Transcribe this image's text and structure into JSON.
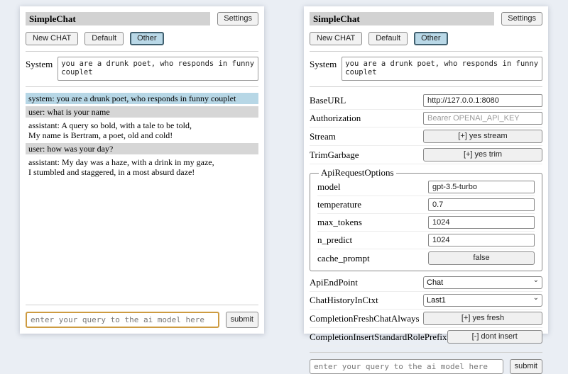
{
  "colors": {
    "page_background": "#eaeef4",
    "titlebar_gray": "#d2d2d2",
    "active_tab_blue": "#b9d8e7",
    "system_msg_blue": "#b7d7e6",
    "user_msg_gray": "#d6d6d6",
    "query_focus_border": "#cd9b41"
  },
  "icons": {
    "chevron_down": "⌄"
  },
  "left": {
    "header": {
      "title": "SimpleChat",
      "settings_button": "Settings"
    },
    "tabs": {
      "new_chat": "New CHAT",
      "default": "Default",
      "other": "Other"
    },
    "system": {
      "label": "System",
      "value": "you are a drunk poet, who responds in funny couplet"
    },
    "messages": [
      {
        "role": "system",
        "text": "system: you are a drunk poet, who responds in funny couplet"
      },
      {
        "role": "user",
        "text": "user: what is your name"
      },
      {
        "role": "assistant",
        "text": "assistant: A query so bold, with a tale to be told,\nMy name is Bertram, a poet, old and cold!"
      },
      {
        "role": "user",
        "text": "user: how was your day?"
      },
      {
        "role": "assistant",
        "text": "assistant: My day was a haze, with a drink in my gaze,\nI stumbled and staggered, in a most absurd daze!"
      }
    ],
    "query": {
      "placeholder": "enter your query to the ai model here",
      "submit": "submit"
    }
  },
  "right": {
    "header": {
      "title": "SimpleChat",
      "settings_button": "Settings"
    },
    "tabs": {
      "new_chat": "New CHAT",
      "default": "Default",
      "other": "Other"
    },
    "system": {
      "label": "System",
      "value": "you are a drunk poet, who responds in funny couplet"
    },
    "settings": {
      "base_url": {
        "label": "BaseURL",
        "value": "http://127.0.0.1:8080"
      },
      "authorization": {
        "label": "Authorization",
        "placeholder": "Bearer OPENAI_API_KEY"
      },
      "stream": {
        "label": "Stream",
        "button": "[+] yes stream"
      },
      "trim_garbage": {
        "label": "TrimGarbage",
        "button": "[+] yes trim"
      },
      "api_request_options": {
        "legend": "ApiRequestOptions",
        "model": {
          "label": "model",
          "value": "gpt-3.5-turbo"
        },
        "temperature": {
          "label": "temperature",
          "value": "0.7"
        },
        "max_tokens": {
          "label": "max_tokens",
          "value": "1024"
        },
        "n_predict": {
          "label": "n_predict",
          "value": "1024"
        },
        "cache_prompt": {
          "label": "cache_prompt",
          "button": "false"
        }
      },
      "api_endpoint": {
        "label": "ApiEndPoint",
        "selected": "Chat"
      },
      "chat_history_in_ctxt": {
        "label": "ChatHistoryInCtxt",
        "selected": "Last1"
      },
      "completion_fresh_chat_always": {
        "label": "CompletionFreshChatAlways",
        "button": "[+] yes fresh"
      },
      "completion_insert_standard_role_prefix": {
        "label": "CompletionInsertStandardRolePrefix",
        "button": "[-] dont insert"
      }
    },
    "query": {
      "placeholder": "enter your query to the ai model here",
      "submit": "submit"
    }
  }
}
